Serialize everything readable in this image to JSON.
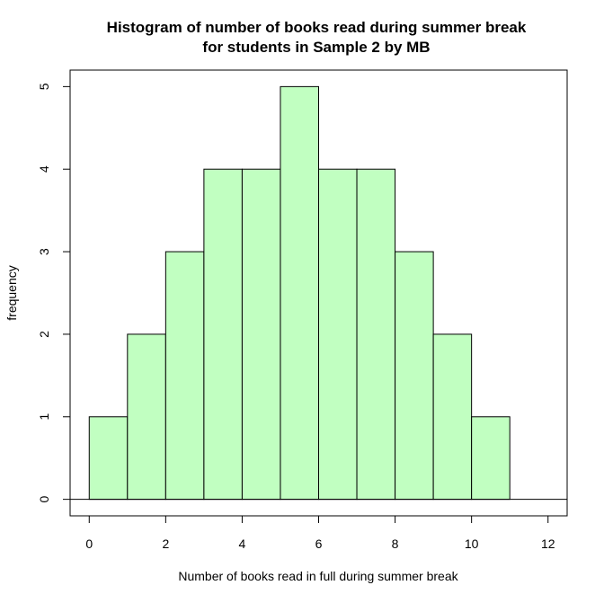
{
  "chart_data": {
    "type": "bar",
    "title": "Histogram of number of books read during summer break",
    "subtitle": "for students in Sample 2 by MB",
    "xlabel": "Number of books read in full during summer break",
    "ylabel": "frequency",
    "bins": [
      {
        "x0": 0,
        "x1": 1,
        "value": 1
      },
      {
        "x0": 1,
        "x1": 2,
        "value": 2
      },
      {
        "x0": 2,
        "x1": 3,
        "value": 3
      },
      {
        "x0": 3,
        "x1": 4,
        "value": 4
      },
      {
        "x0": 4,
        "x1": 5,
        "value": 4
      },
      {
        "x0": 5,
        "x1": 6,
        "value": 5
      },
      {
        "x0": 6,
        "x1": 7,
        "value": 4
      },
      {
        "x0": 7,
        "x1": 8,
        "value": 4
      },
      {
        "x0": 8,
        "x1": 9,
        "value": 3
      },
      {
        "x0": 9,
        "x1": 10,
        "value": 2
      },
      {
        "x0": 10,
        "x1": 11,
        "value": 1
      }
    ],
    "xlim": [
      -0.5,
      12.5
    ],
    "ylim": [
      -0.2,
      5.2
    ],
    "x_ticks": [
      "0",
      "2",
      "4",
      "6",
      "8",
      "10",
      "12"
    ],
    "y_ticks": [
      "0",
      "1",
      "2",
      "3",
      "4",
      "5"
    ],
    "bar_color": "#c1ffc1",
    "edge_color": "#000000",
    "baseline": 0,
    "grid": false,
    "legend": "none"
  }
}
